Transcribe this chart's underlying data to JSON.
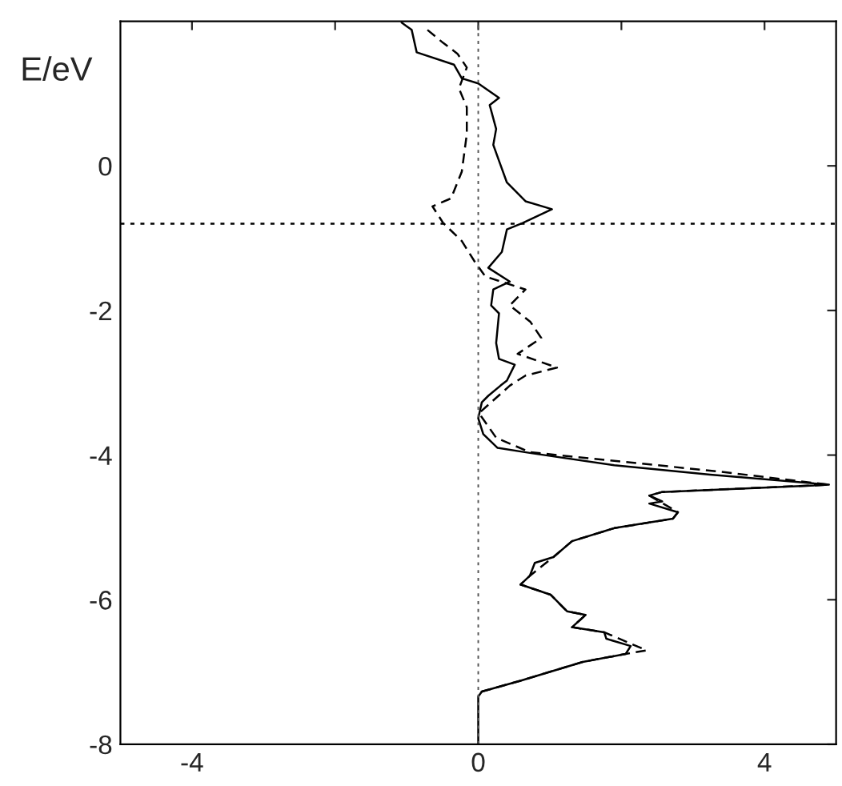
{
  "chart_data": {
    "type": "line",
    "ylabel": "E/eV",
    "xlim": [
      -5,
      5
    ],
    "xticks": [
      -4,
      {
        "value": -2,
        "label": null
      },
      0,
      {
        "value": 2,
        "label": null
      },
      4
    ],
    "ylim": [
      -8,
      2
    ],
    "yticks": [
      -8,
      -6,
      -4,
      -2,
      0
    ],
    "grid": false,
    "legend": false,
    "marker": "none",
    "ref_lines": [
      {
        "axis": "y",
        "value": -0.8,
        "color": "#000000",
        "line_style": "dotted"
      },
      {
        "axis": "x",
        "value": 0,
        "color": "#555555",
        "line_style": "dotted"
      }
    ],
    "series": [
      {
        "color": "#000000",
        "line_style": "solid",
        "x": [
          -1.07,
          -0.93,
          -0.86,
          -0.34,
          -0.23,
          0,
          0.29,
          0.16,
          0.25,
          0.21,
          0.29,
          0.4,
          0.66,
          1.03,
          0.62,
          0.4,
          0.33,
          0.14,
          0.44,
          0.21,
          0.18,
          0.29,
          0.25,
          0.29,
          0.51,
          0.4,
          0.31,
          0.14,
          0.05,
          0,
          0.07,
          0.27,
          0.72,
          1.9,
          3.24,
          4.9,
          2.57,
          2.39,
          2.57,
          2.39,
          2.79,
          2.72,
          1.9,
          1.31,
          1.05,
          0.79,
          0.72,
          0.59,
          1.01,
          1.24,
          1.5,
          1.31,
          1.76,
          1.79,
          2.13,
          2.06,
          1.46,
          0.59,
          0.05,
          0,
          0
        ],
        "values": [
          1.98,
          1.88,
          1.57,
          1.4,
          1.21,
          1.14,
          0.94,
          0.84,
          0.51,
          0.29,
          0.07,
          -0.23,
          -0.49,
          -0.6,
          -0.79,
          -0.88,
          -1.19,
          -1.41,
          -1.6,
          -1.71,
          -1.93,
          -2.04,
          -2.45,
          -2.67,
          -2.75,
          -2.97,
          -3.04,
          -3.18,
          -3.27,
          -3.49,
          -3.71,
          -3.9,
          -3.97,
          -4.14,
          -4.27,
          -4.41,
          -4.51,
          -4.56,
          -4.64,
          -4.67,
          -4.79,
          -4.88,
          -5.01,
          -5.19,
          -5.41,
          -5.49,
          -5.67,
          -5.79,
          -5.93,
          -6.16,
          -6.21,
          -6.38,
          -6.45,
          -6.54,
          -6.64,
          -6.75,
          -6.86,
          -7.12,
          -7.27,
          -7.34,
          -8.0
        ]
      },
      {
        "color": "#000000",
        "line_style": "dashed",
        "x": [
          -0.71,
          -0.49,
          -0.29,
          -0.16,
          -0.27,
          -0.16,
          -0.16,
          -0.23,
          -0.38,
          -0.64,
          -0.49,
          -0.23,
          -0.04,
          0.1,
          0.66,
          0.44,
          0.73,
          0.88,
          0.55,
          1.1,
          0.66,
          0.44,
          0.35,
          0.01,
          0.25,
          0.72,
          3.39,
          4.9,
          2.57,
          2.39,
          2.79,
          2.72,
          1.9,
          1.31,
          1.05,
          0.72,
          0.59,
          1.01,
          1.24,
          1.5,
          1.31,
          1.76,
          2.35,
          2.06,
          1.46,
          0.59,
          0.05,
          0
        ],
        "values": [
          1.88,
          1.7,
          1.55,
          1.36,
          1.07,
          0.81,
          0.44,
          -0.08,
          -0.45,
          -0.56,
          -0.79,
          -1.04,
          -1.34,
          -1.53,
          -1.71,
          -1.93,
          -2.16,
          -2.38,
          -2.6,
          -2.79,
          -2.9,
          -3.04,
          -3.12,
          -3.42,
          -3.76,
          -3.96,
          -4.23,
          -4.41,
          -4.51,
          -4.56,
          -4.79,
          -4.88,
          -5.01,
          -5.19,
          -5.41,
          -5.67,
          -5.79,
          -5.93,
          -6.16,
          -6.21,
          -6.38,
          -6.45,
          -6.7,
          -6.75,
          -6.86,
          -7.12,
          -7.27,
          -7.34
        ]
      }
    ]
  }
}
